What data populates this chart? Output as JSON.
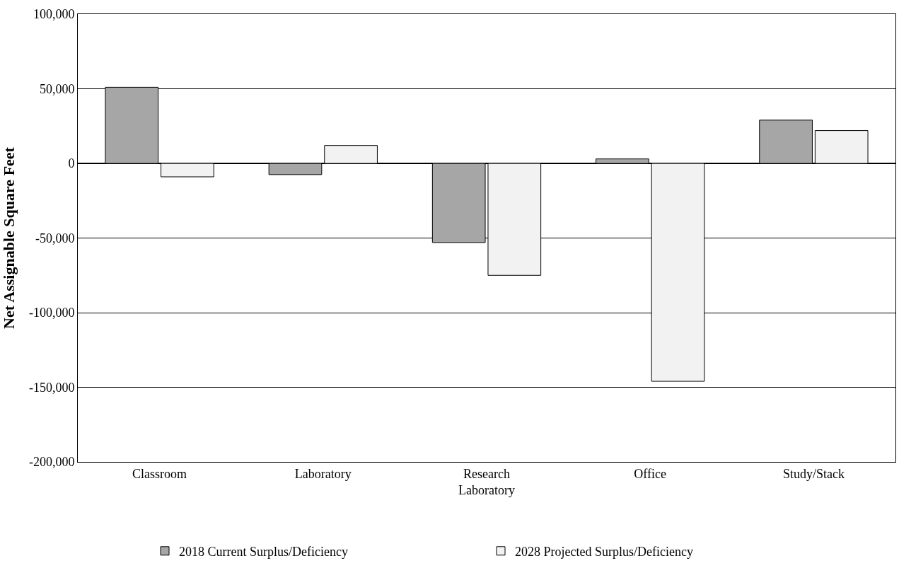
{
  "chart_data": {
    "type": "bar",
    "ylabel": "Net Assignable Square Feet",
    "categories": [
      "Classroom",
      "Laboratory",
      "Research Laboratory",
      "Office",
      "Study/Stack"
    ],
    "series": [
      {
        "name": "2018 Current Surplus/Deficiency",
        "color": "#a6a6a6",
        "values": [
          51000,
          -7500,
          -53000,
          3000,
          29000
        ]
      },
      {
        "name": "2028 Projected Surplus/Deficiency",
        "color": "#f2f2f2",
        "values": [
          -9000,
          12000,
          -75000,
          -146000,
          22000
        ]
      }
    ],
    "ylim": [
      -200000,
      100000
    ],
    "yticks": [
      {
        "value": -200000,
        "label": "-200,000"
      },
      {
        "value": -150000,
        "label": "-150,000"
      },
      {
        "value": -100000,
        "label": "-100,000"
      },
      {
        "value": -50000,
        "label": "-50,000"
      },
      0,
      {
        "value": 50000,
        "label": "50,000"
      },
      {
        "value": 100000,
        "label": "100,000"
      }
    ],
    "grid": "y",
    "legend": "bottom"
  }
}
